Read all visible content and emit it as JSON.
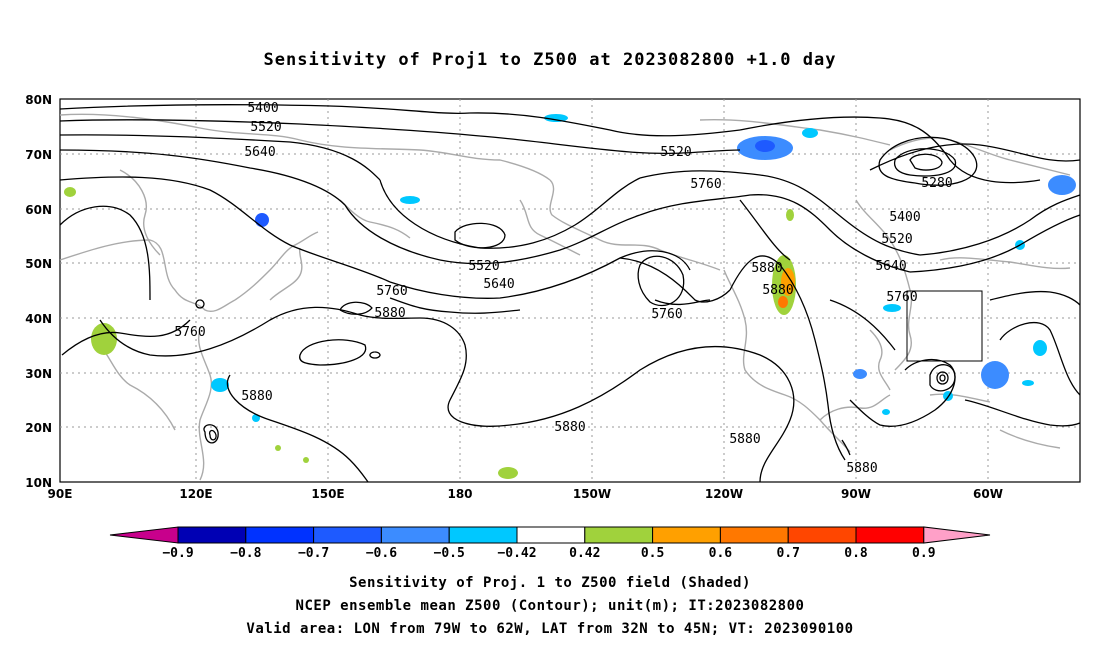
{
  "title": "Sensitivity of Proj1 to Z500 at 2023082800 +1.0 day",
  "lat_labels": [
    "80N",
    "70N",
    "60N",
    "50N",
    "40N",
    "30N",
    "20N",
    "10N"
  ],
  "lon_labels": [
    "90E",
    "120E",
    "150E",
    "180",
    "150W",
    "120W",
    "90W",
    "60W"
  ],
  "contour_labels": [
    {
      "text": "5400"
    },
    {
      "text": "5520"
    },
    {
      "text": "5640"
    },
    {
      "text": "5520"
    },
    {
      "text": "5760"
    },
    {
      "text": "5280"
    },
    {
      "text": "5400"
    },
    {
      "text": "5520"
    },
    {
      "text": "5640"
    },
    {
      "text": "5760"
    },
    {
      "text": "5520"
    },
    {
      "text": "5640"
    },
    {
      "text": "5880"
    },
    {
      "text": "5880"
    },
    {
      "text": "5760"
    },
    {
      "text": "5880"
    },
    {
      "text": "5760"
    },
    {
      "text": "5760"
    },
    {
      "text": "5880"
    },
    {
      "text": "5880"
    },
    {
      "text": "5880"
    },
    {
      "text": "5880"
    }
  ],
  "colorbar": {
    "labels": [
      "-0.9",
      "-0.8",
      "-0.7",
      "-0.6",
      "-0.5",
      "-0.42",
      "0.42",
      "0.5",
      "0.6",
      "0.7",
      "0.8",
      "0.9"
    ],
    "colors": [
      "#c8008c",
      "#0000b4",
      "#0032ff",
      "#1e5aff",
      "#3c8cff",
      "#00c8ff",
      "#ffffff",
      "#a0d23c",
      "#ffa000",
      "#ff7800",
      "#ff4600",
      "#ff0000",
      "#ffa0c8"
    ]
  },
  "caption": {
    "line1": "Sensitivity of Proj. 1 to Z500 field (Shaded)",
    "line2": "NCEP ensemble mean Z500 (Contour); unit(m); IT:2023082800",
    "line3": "Valid area: LON from 79W to 62W, LAT from 32N to 45N; VT: 2023090100"
  }
}
